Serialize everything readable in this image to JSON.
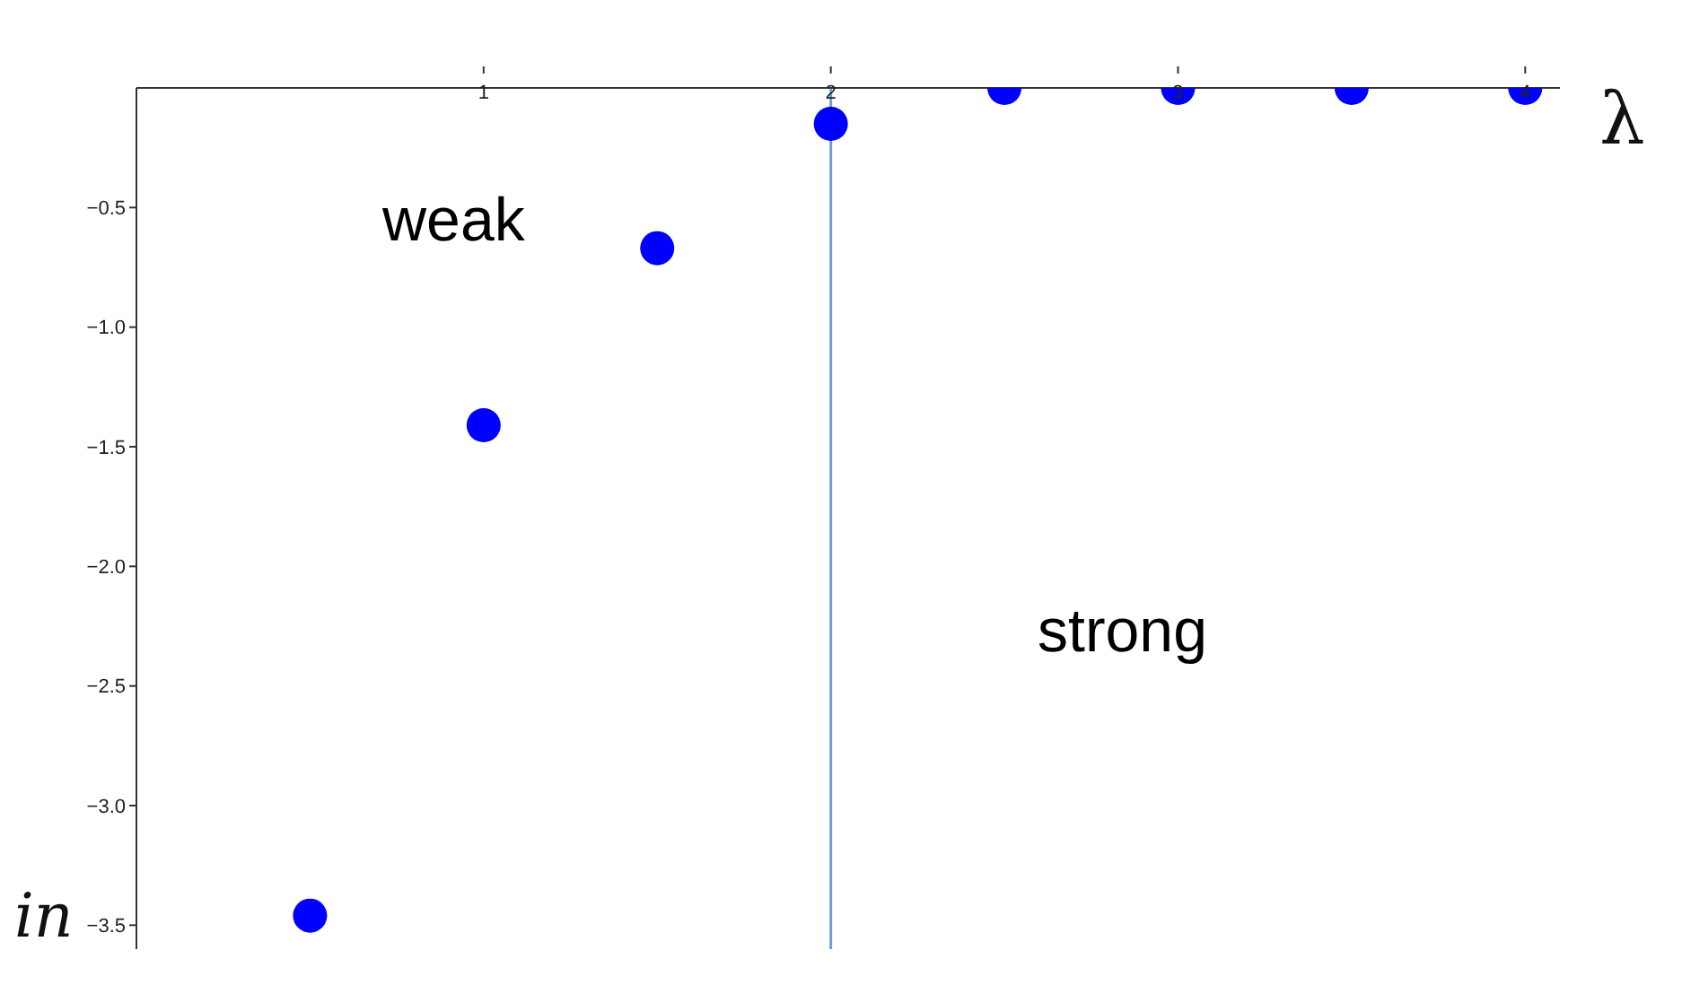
{
  "chart_data": {
    "type": "scatter",
    "xlabel": "λ",
    "ylabel": "in",
    "x": [
      0.5,
      1,
      1.5,
      2,
      2.5,
      3,
      3.5,
      4
    ],
    "series": [
      {
        "color": "#0000ff",
        "values": [
          -3.46,
          -1.41,
          -0.67,
          -0.15,
          0,
          0,
          0,
          0
        ]
      }
    ],
    "xlim": [
      0,
      4.1
    ],
    "ylim": [
      -3.6,
      0
    ],
    "xticks": [
      1,
      2,
      3,
      4
    ],
    "yticks": [
      {
        "value": -0.5,
        "label": "−0.5"
      },
      {
        "value": -1,
        "label": "−1.0"
      },
      {
        "value": -1.5,
        "label": "−1.5"
      },
      {
        "value": -2,
        "label": "−2.0"
      },
      {
        "value": -2.5,
        "label": "−2.5"
      },
      {
        "value": -3,
        "label": "−3.0"
      },
      {
        "value": -3.5,
        "label": "−3.5"
      }
    ],
    "ref_lines": [
      {
        "axis": "x",
        "value": 2,
        "color": "#6f9fd0"
      }
    ],
    "annotations": [
      "weak",
      "strong"
    ],
    "marker": "circle",
    "grid": false,
    "legend": false
  }
}
